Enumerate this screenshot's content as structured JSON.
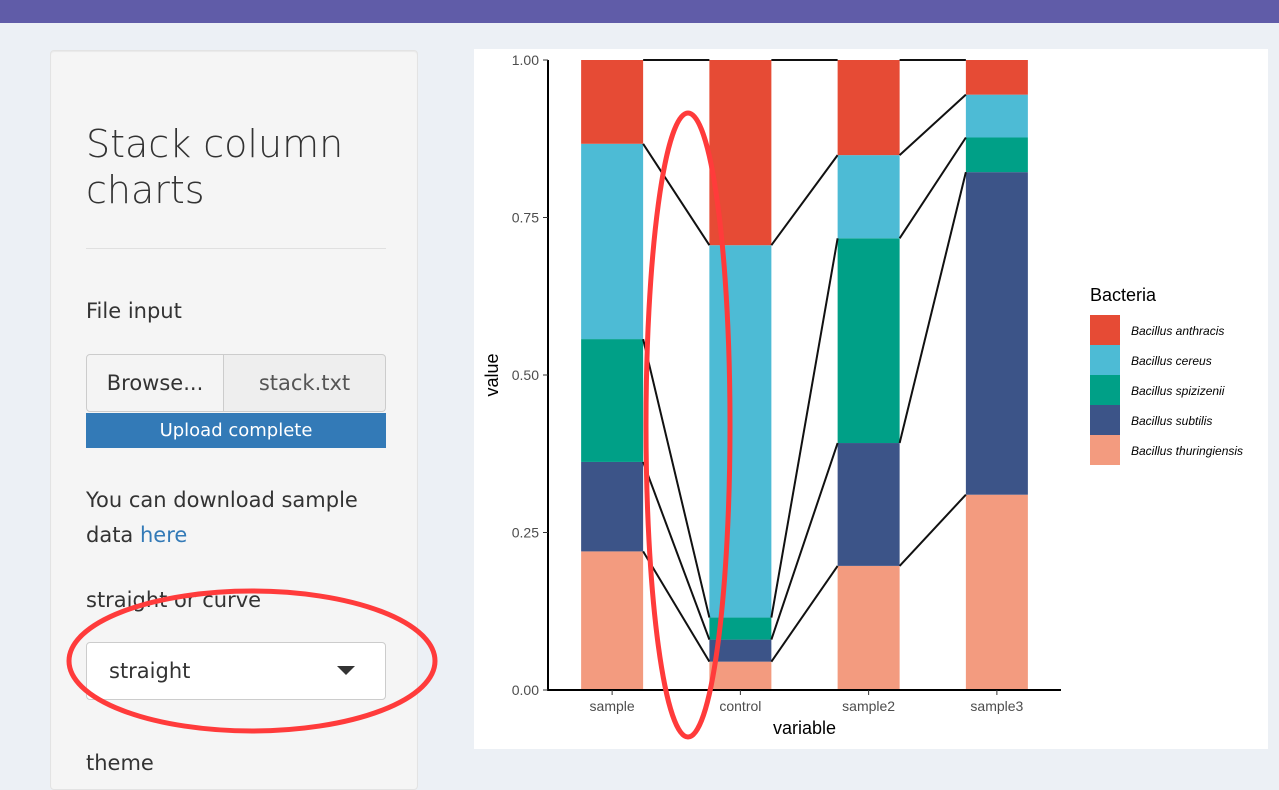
{
  "app": {
    "title": "Stack column charts"
  },
  "sidebar": {
    "file_label": "File input",
    "browse_label": "Browse...",
    "file_name": "stack.txt",
    "upload_status": "Upload complete",
    "help_prefix": "You can download sample data ",
    "help_link": "here",
    "style_label": "straight or curve",
    "style_value": "straight",
    "theme_label": "theme"
  },
  "colors": {
    "topbar": "#605ca8",
    "upload_bar": "#337ab7",
    "annotation": "#ff3b3b"
  },
  "chart_data": {
    "type": "bar",
    "stacked": true,
    "connecting_lines": "straight",
    "categories": [
      "sample",
      "control",
      "sample2",
      "sample3"
    ],
    "xlabel": "variable",
    "ylabel": "value",
    "ylim": [
      0,
      1
    ],
    "yticks": [
      "0.00",
      "0.25",
      "0.50",
      "0.75",
      "1.00"
    ],
    "legend_title": "Bacteria",
    "legend_position": "right",
    "series": [
      {
        "name": "Bacillus thuringiensis",
        "color": "#f39b7f",
        "values": [
          0.22,
          0.045,
          0.197,
          0.31
        ]
      },
      {
        "name": "Bacillus subtilis",
        "color": "#3c5488",
        "values": [
          0.142,
          0.035,
          0.195,
          0.512
        ]
      },
      {
        "name": "Bacillus spizizenii",
        "color": "#00a087",
        "values": [
          0.195,
          0.035,
          0.325,
          0.055
        ]
      },
      {
        "name": "Bacillus cereus",
        "color": "#4dbbd5",
        "values": [
          0.31,
          0.591,
          0.132,
          0.068
        ]
      },
      {
        "name": "Bacillus anthracis",
        "color": "#e64b35",
        "values": [
          0.133,
          0.294,
          0.151,
          0.055
        ]
      }
    ],
    "legend_order": [
      "Bacillus anthracis",
      "Bacillus cereus",
      "Bacillus spizizenii",
      "Bacillus subtilis",
      "Bacillus thuringiensis"
    ]
  }
}
